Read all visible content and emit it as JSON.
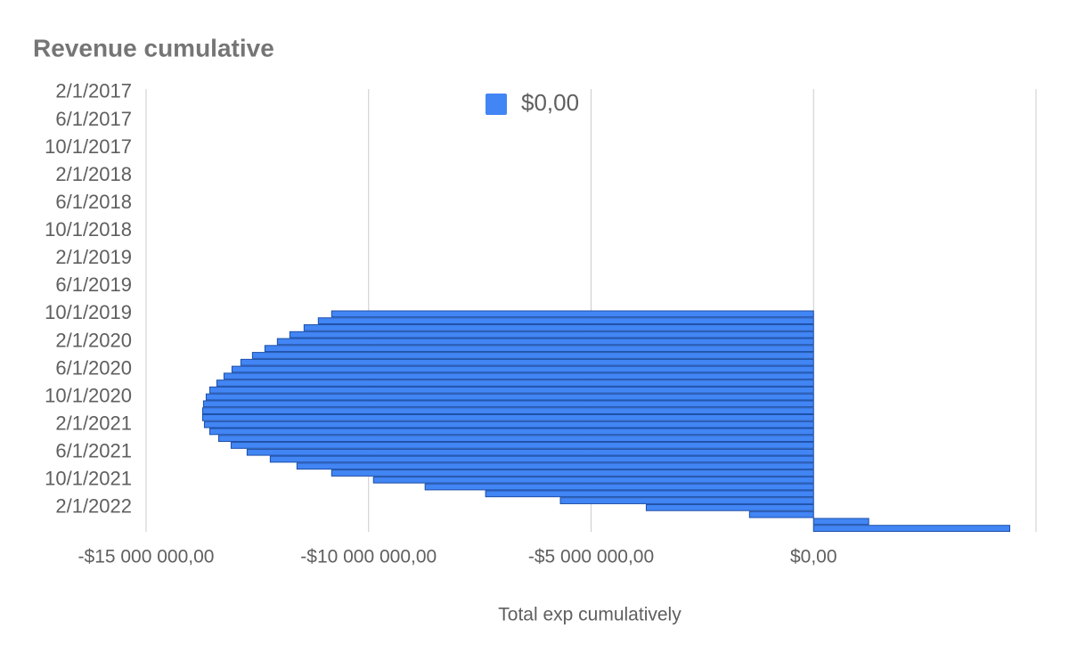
{
  "chart_data": {
    "type": "barh",
    "title": "Revenue cumulative",
    "x_label": "Total exp cumulatively",
    "categories": [
      "2/1/2017",
      null,
      null,
      null,
      "6/1/2017",
      null,
      null,
      null,
      "10/1/2017",
      null,
      null,
      null,
      "2/1/2018",
      null,
      null,
      null,
      "6/1/2018",
      null,
      null,
      null,
      "10/1/2018",
      null,
      null,
      null,
      "2/1/2019",
      null,
      null,
      null,
      "6/1/2019",
      null,
      null,
      null,
      "10/1/2019",
      null,
      null,
      null,
      "2/1/2020",
      null,
      null,
      null,
      "6/1/2020",
      null,
      null,
      null,
      "10/1/2020",
      null,
      null,
      null,
      "2/1/2021",
      null,
      null,
      null,
      "6/1/2021",
      null,
      null,
      null,
      "10/1/2021",
      null,
      null,
      null,
      "2/1/2022",
      null,
      null,
      null
    ],
    "series": [
      {
        "name": "$0,00",
        "color": "#4285f4",
        "values": [
          0,
          0,
          0,
          0,
          0,
          0,
          0,
          0,
          0,
          0,
          0,
          0,
          0,
          0,
          0,
          0,
          0,
          0,
          0,
          0,
          0,
          0,
          0,
          0,
          0,
          0,
          0,
          0,
          0,
          0,
          0,
          0,
          -10830000,
          -11130000,
          -11450000,
          -11770000,
          -12050000,
          -12330000,
          -12610000,
          -12870000,
          -13070000,
          -13250000,
          -13410000,
          -13570000,
          -13650000,
          -13710000,
          -13730000,
          -13730000,
          -13690000,
          -13570000,
          -13370000,
          -13090000,
          -12730000,
          -12210000,
          -11610000,
          -10830000,
          -9890000,
          -8730000,
          -7370000,
          -5690000,
          -3760000,
          -1440000,
          1240000,
          4410000
        ]
      }
    ],
    "xlim": [
      -15000000,
      5000000
    ],
    "xticks": [
      {
        "value": -15000000,
        "label": "-$15 000 000,00"
      },
      {
        "value": -10000000,
        "label": "-$10 000 000,00"
      },
      {
        "value": -5000000,
        "label": "-$5 000 000,00"
      },
      {
        "value": 0,
        "label": "$0,00"
      }
    ],
    "grid": true,
    "legend": "top"
  }
}
